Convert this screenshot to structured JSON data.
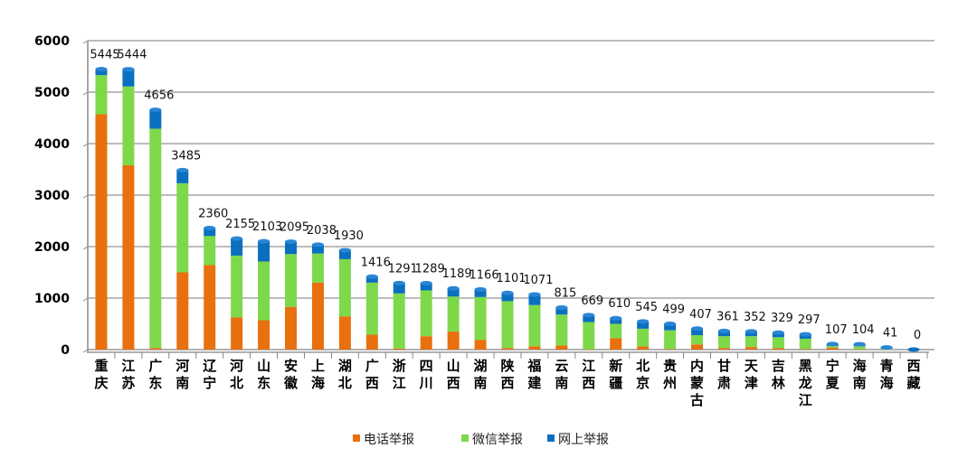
{
  "chart_data": {
    "type": "bar",
    "stacked": true,
    "title": "",
    "xlabel": "",
    "ylabel": "",
    "ylim": [
      0,
      6000
    ],
    "yticks": [
      0,
      1000,
      2000,
      3000,
      4000,
      5000,
      6000
    ],
    "grid": true,
    "legend_position": "bottom",
    "categories": [
      "重庆",
      "江苏",
      "广东",
      "河南",
      "辽宁",
      "河北",
      "山东",
      "安徽",
      "上海",
      "湖北",
      "广西",
      "浙江",
      "四川",
      "山西",
      "湖南",
      "陕西",
      "福建",
      "云南",
      "江西",
      "新疆",
      "北京",
      "贵州",
      "内蒙古",
      "甘肃",
      "天津",
      "吉林",
      "黑龙江",
      "宁夏",
      "海南",
      "青海",
      "西藏"
    ],
    "totals": [
      5445,
      5444,
      4656,
      3485,
      2360,
      2155,
      2103,
      2095,
      2038,
      1930,
      1416,
      1291,
      1289,
      1189,
      1166,
      1101,
      1071,
      815,
      669,
      610,
      545,
      499,
      407,
      361,
      352,
      329,
      297,
      107,
      104,
      41,
      0
    ],
    "series": [
      {
        "name": "电话举报",
        "color": "#e8700e",
        "values": [
          4570,
          3580,
          30,
          1500,
          1640,
          625,
          570,
          830,
          1300,
          645,
          290,
          20,
          260,
          350,
          190,
          30,
          65,
          80,
          5,
          220,
          60,
          10,
          100,
          30,
          50,
          30,
          10,
          40,
          5,
          0,
          0
        ]
      },
      {
        "name": "微信举报",
        "color": "#7ed94a",
        "values": [
          760,
          1530,
          4260,
          1730,
          565,
          1200,
          1140,
          1025,
          565,
          1110,
          1010,
          1070,
          890,
          680,
          830,
          910,
          800,
          600,
          530,
          280,
          345,
          365,
          180,
          230,
          210,
          210,
          200,
          30,
          60,
          15,
          0
        ]
      },
      {
        "name": "网上举报",
        "color": "#0b6fc0",
        "values": [
          115,
          334,
          366,
          255,
          155,
          330,
          393,
          240,
          173,
          175,
          116,
          201,
          139,
          159,
          146,
          161,
          206,
          135,
          134,
          110,
          140,
          124,
          127,
          101,
          92,
          89,
          87,
          37,
          39,
          26,
          0
        ]
      }
    ]
  }
}
